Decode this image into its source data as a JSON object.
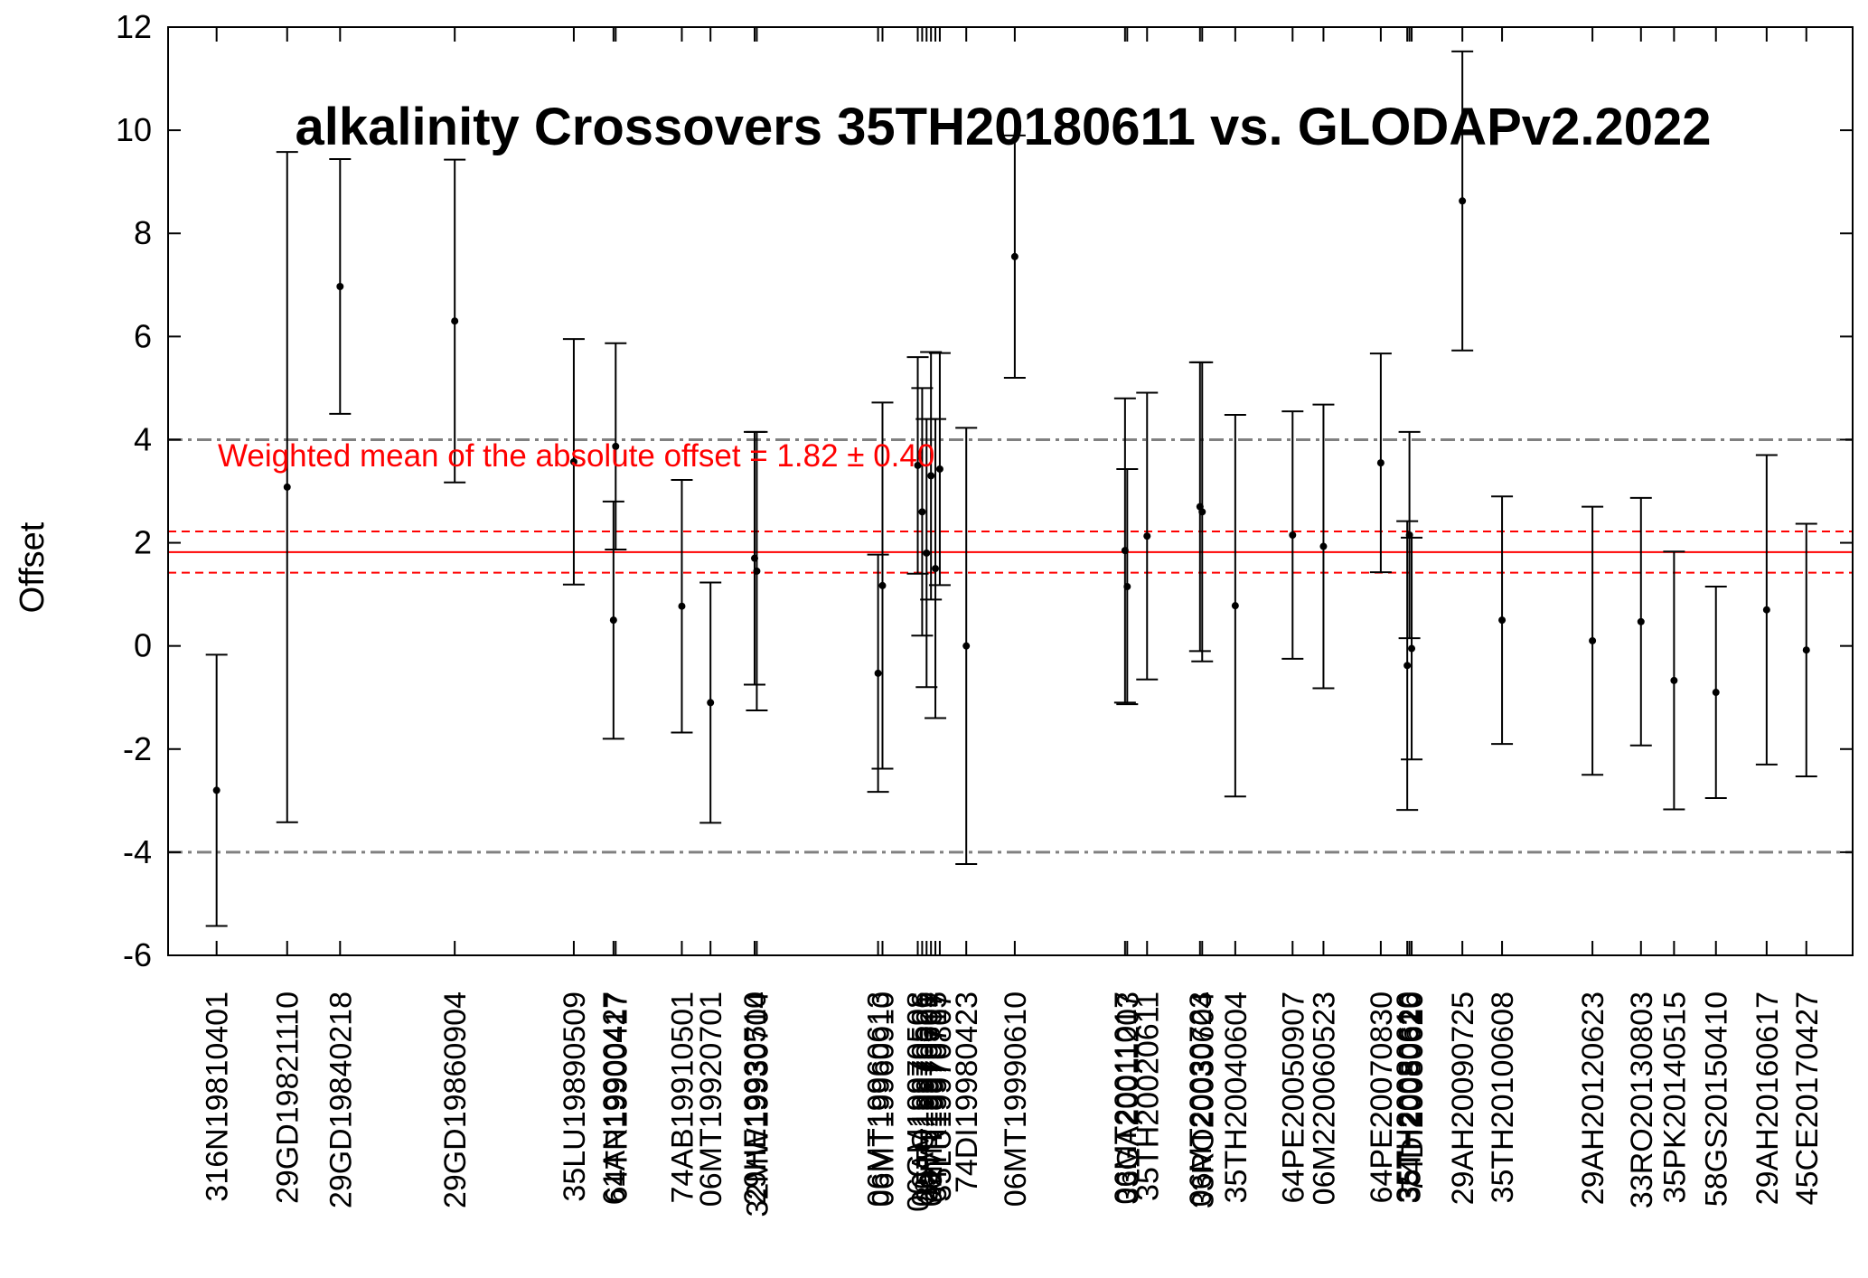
{
  "chart_data": {
    "type": "scatter",
    "title": "alkalinity Crossovers 35TH20180611 vs. GLODAPv2.2022",
    "xlabel": "",
    "ylabel": "Offset",
    "ylim": [
      -6,
      12
    ],
    "yticks": [
      -6,
      -4,
      -2,
      0,
      2,
      4,
      6,
      8,
      10,
      12
    ],
    "grid": false,
    "error_bars": true,
    "mean_annotation": "Weighted mean of the absolute offset = 1.82 ± 0.40",
    "weighted_mean": 1.82,
    "weighted_mean_uncertainty": 0.4,
    "threshold_lines": [
      4,
      -4
    ],
    "colors": {
      "points": "#000000",
      "mean_line": "#ff0000",
      "threshold": "#808080"
    },
    "series": [
      {
        "points": [
          {
            "x": 1981.3,
            "label": "316N19810401",
            "y": -2.8,
            "err": 2.63
          },
          {
            "x": 1982.9,
            "label": "29GD19821110",
            "y": 3.08,
            "err": 6.5
          },
          {
            "x": 1984.1,
            "label": "29GD19840218",
            "y": 6.97,
            "err": 2.47
          },
          {
            "x": 1986.7,
            "label": "29GD19860904",
            "y": 6.3,
            "err": 3.13
          },
          {
            "x": 1989.4,
            "label": "35LU19890509",
            "y": 3.57,
            "err": 2.38
          },
          {
            "x": 1990.3,
            "label": "61AN19900427",
            "y": 0.5,
            "err": 2.3
          },
          {
            "x": 1990.35,
            "label": "64TR19900417",
            "y": 3.87,
            "err": 2.0
          },
          {
            "x": 1991.85,
            "label": "74AB19910501",
            "y": 0.77,
            "err": 2.45
          },
          {
            "x": 1992.5,
            "label": "06MT19920701",
            "y": -1.1,
            "err": 2.33
          },
          {
            "x": 1993.5,
            "label": "29HE19930510",
            "y": 1.7,
            "err": 2.45
          },
          {
            "x": 1993.55,
            "label": "32MW19930704",
            "y": 1.45,
            "err": 2.7
          },
          {
            "x": 1996.3,
            "label": "06MT19960613",
            "y": -0.53,
            "err": 2.3
          },
          {
            "x": 1996.4,
            "label": "06MT19960910",
            "y": 1.17,
            "err": 3.55
          },
          {
            "x": 1997.2,
            "label": "06GM19970508",
            "y": 3.5,
            "err": 2.1
          },
          {
            "x": 1997.3,
            "label": "06AQ19970526",
            "y": 2.6,
            "err": 2.4
          },
          {
            "x": 1997.4,
            "label": "35TH19970601",
            "y": 1.8,
            "err": 2.6
          },
          {
            "x": 1997.5,
            "label": "06MT19970707",
            "y": 3.3,
            "err": 2.4
          },
          {
            "x": 1997.6,
            "label": "64TR19970715",
            "y": 1.5,
            "err": 2.9
          },
          {
            "x": 1997.7,
            "label": "35LU19970807",
            "y": 3.43,
            "err": 2.25
          },
          {
            "x": 1998.3,
            "label": "74DI19980423",
            "y": 0.0,
            "err": 4.23
          },
          {
            "x": 1999.4,
            "label": "06MT19990610",
            "y": 7.55,
            "err": 2.35
          },
          {
            "x": 2001.9,
            "label": "06MT20011017",
            "y": 1.85,
            "err": 2.95
          },
          {
            "x": 2001.95,
            "label": "33GA20011203",
            "y": 1.15,
            "err": 2.28
          },
          {
            "x": 2002.4,
            "label": "35TH20020611",
            "y": 2.13,
            "err": 2.78
          },
          {
            "x": 2003.6,
            "label": "06MT20030723",
            "y": 2.7,
            "err": 2.8
          },
          {
            "x": 2003.65,
            "label": "33RO20030604",
            "y": 2.6,
            "err": 2.9
          },
          {
            "x": 2004.4,
            "label": "35TH20040604",
            "y": 0.78,
            "err": 3.7
          },
          {
            "x": 2005.7,
            "label": "64PE20050907",
            "y": 2.15,
            "err": 2.4
          },
          {
            "x": 2006.4,
            "label": "06M220060523",
            "y": 1.93,
            "err": 2.75
          },
          {
            "x": 2007.7,
            "label": "64PE20070830",
            "y": 3.55,
            "err": 2.12
          },
          {
            "x": 2008.3,
            "label": "35TH20080610",
            "y": -0.38,
            "err": 2.8
          },
          {
            "x": 2008.35,
            "label": "35TH20080626",
            "y": 2.15,
            "err": 2.0
          },
          {
            "x": 2008.4,
            "label": "74DI20080620",
            "y": -0.05,
            "err": 2.15
          },
          {
            "x": 2009.55,
            "label": "29AH20090725",
            "y": 8.63,
            "err": 2.9
          },
          {
            "x": 2010.45,
            "label": "35TH20100608",
            "y": 0.5,
            "err": 2.4
          },
          {
            "x": 2012.5,
            "label": "29AH20120623",
            "y": 0.1,
            "err": 2.6
          },
          {
            "x": 2013.6,
            "label": "33RO20130803",
            "y": 0.47,
            "err": 2.4
          },
          {
            "x": 2014.35,
            "label": "35PK20140515",
            "y": -0.67,
            "err": 2.5
          },
          {
            "x": 2015.3,
            "label": "58GS20150410",
            "y": -0.9,
            "err": 2.05
          },
          {
            "x": 2016.45,
            "label": "29AH20160617",
            "y": 0.7,
            "err": 3.0
          },
          {
            "x": 2017.35,
            "label": "45CE20170427",
            "y": -0.08,
            "err": 2.45
          }
        ]
      }
    ]
  }
}
